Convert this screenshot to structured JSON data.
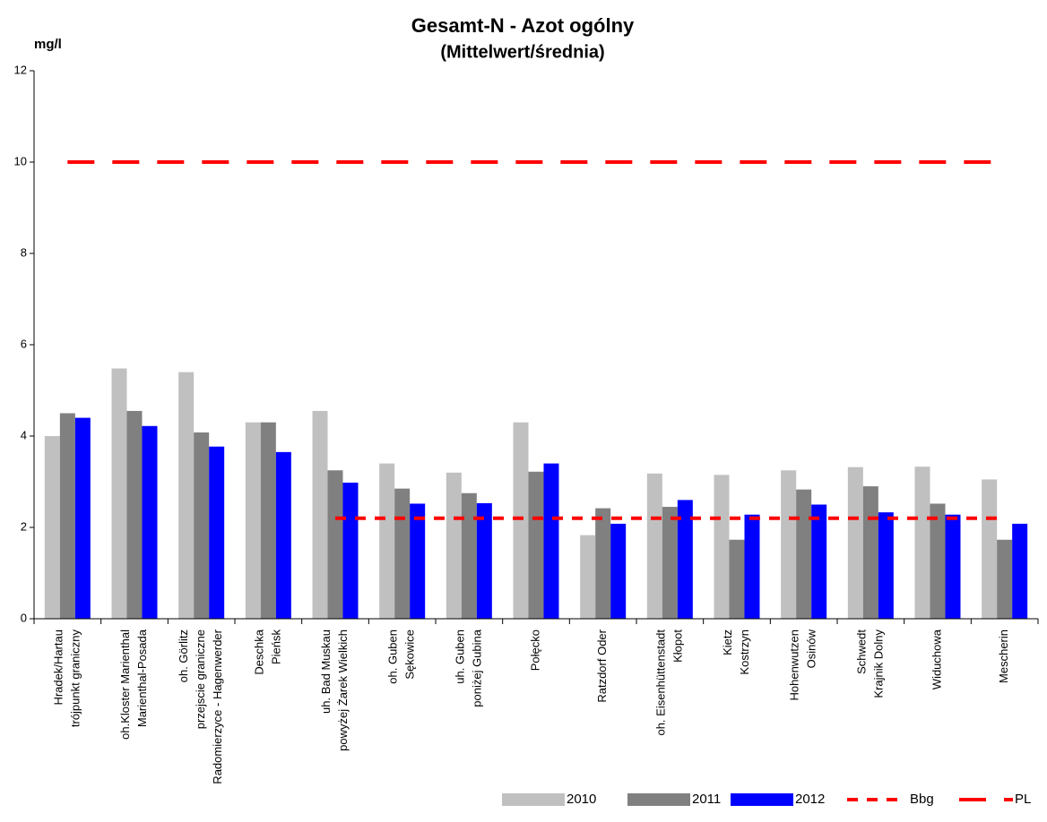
{
  "chart_data": {
    "type": "bar",
    "title": "Gesamt-N - Azot ogólny",
    "subtitle": "(Mittelwert/średnia)",
    "y_label": "mg/l",
    "categories": [
      [
        "Hradek/Hartau",
        "trójpunkt graniczny"
      ],
      [
        "oh.Kloster Marienthal",
        "Marienthal-Posada"
      ],
      [
        "oh. Görlitz",
        "przejscie graniczne",
        "Radomierzyce - Hagenwerder"
      ],
      [
        "Deschka",
        "Pieńsk"
      ],
      [
        "uh. Bad Muskau",
        "powyżej Żarek Wielkich"
      ],
      [
        "oh. Guben",
        "Sękowice"
      ],
      [
        "uh. Guben",
        "poniżej Gubina"
      ],
      [
        "Połęcko"
      ],
      [
        "Ratzdorf Oder"
      ],
      [
        "oh. Eisenhüttenstadt",
        "Kłopot"
      ],
      [
        "Kietz",
        "Kostrzyn"
      ],
      [
        "Hohenwutzen",
        "Osinów"
      ],
      [
        "Schwedt",
        "Krajnik Dolny"
      ],
      [
        "Widuchowa"
      ],
      [
        "Mescherin"
      ]
    ],
    "series": [
      {
        "name": "2010",
        "type": "bar",
        "color": "#c0c0c0",
        "values": [
          4.0,
          5.48,
          5.4,
          4.3,
          4.55,
          3.4,
          3.2,
          4.3,
          1.83,
          3.18,
          3.15,
          3.25,
          3.32,
          3.33,
          3.05
        ]
      },
      {
        "name": "2011",
        "type": "bar",
        "color": "#808080",
        "values": [
          4.5,
          4.55,
          4.08,
          4.3,
          3.25,
          2.85,
          2.75,
          3.22,
          2.42,
          2.45,
          1.73,
          2.83,
          2.9,
          2.52,
          1.73
        ]
      },
      {
        "name": "2012",
        "type": "bar",
        "color": "#0000ff",
        "values": [
          4.4,
          4.22,
          3.77,
          3.65,
          2.98,
          2.52,
          2.53,
          3.4,
          2.08,
          2.6,
          2.28,
          2.5,
          2.33,
          2.28,
          2.08
        ]
      },
      {
        "name": "Bbg",
        "type": "line",
        "dash": "short",
        "color": "#ff0000",
        "values": [
          null,
          null,
          null,
          null,
          2.2,
          2.2,
          2.2,
          2.2,
          2.2,
          2.2,
          2.2,
          2.2,
          2.2,
          2.2,
          2.2
        ]
      },
      {
        "name": "PL",
        "type": "line",
        "dash": "long",
        "color": "#ff0000",
        "values": [
          10,
          10,
          10,
          10,
          10,
          10,
          10,
          10,
          10,
          10,
          10,
          10,
          10,
          10,
          10
        ]
      }
    ],
    "ylim": [
      0,
      12
    ],
    "yticks": [
      0,
      2,
      4,
      6,
      8,
      10,
      12
    ],
    "grid": false,
    "legend": "bottom-right"
  }
}
